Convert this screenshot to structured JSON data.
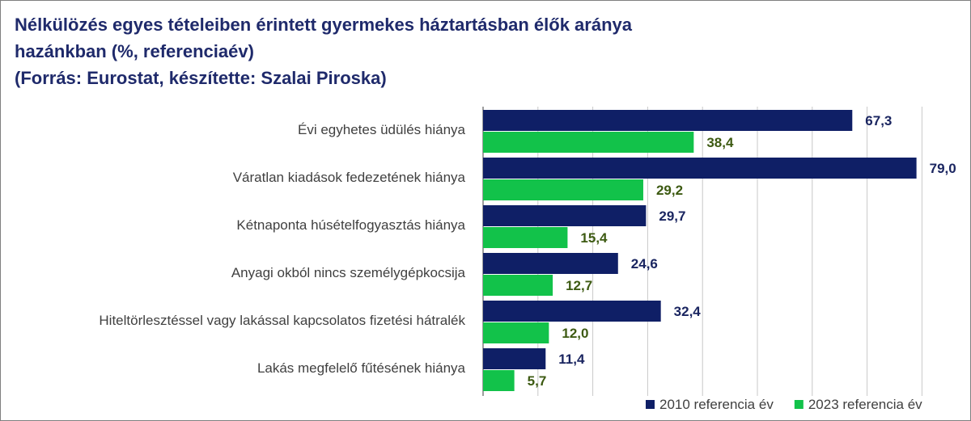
{
  "chart_data": {
    "type": "bar",
    "orientation": "horizontal",
    "title_lines": [
      "Nélkülözés egyes tételeiben érintett gyermekes háztartásban élők aránya",
      "hazánkban (%, referenciaév)",
      "(Forrás: Eurostat, készítette: Szalai Piroska)"
    ],
    "categories": [
      "Évi egyhetes üdülés hiánya",
      "Váratlan kiadások fedezetének hiánya",
      "Kétnaponta húsételfogyasztás hiánya",
      "Anyagi okból nincs személygépkocsija",
      "Hiteltörlesztéssel vagy lakással kapcsolatos fizetési hátralék",
      "Lakás megfelelő fűtésének hiánya"
    ],
    "series": [
      {
        "name": "2010 referencia év",
        "color": "#0f1f66",
        "label_color": "#1a2560",
        "values": [
          67.3,
          79.0,
          29.7,
          24.6,
          32.4,
          11.4
        ],
        "labels": [
          "67,3",
          "79,0",
          "29,7",
          "24,6",
          "32,4",
          "11,4"
        ]
      },
      {
        "name": "2023 referencia év",
        "color": "#12c24a",
        "label_color": "#3d5a12",
        "values": [
          38.4,
          29.2,
          15.4,
          12.7,
          12.0,
          5.7
        ],
        "labels": [
          "38,4",
          "29,2",
          "15,4",
          "12,7",
          "12,0",
          "5,7"
        ]
      }
    ],
    "xlim": [
      0,
      80
    ],
    "grid": true,
    "legend_position": "bottom-right"
  }
}
